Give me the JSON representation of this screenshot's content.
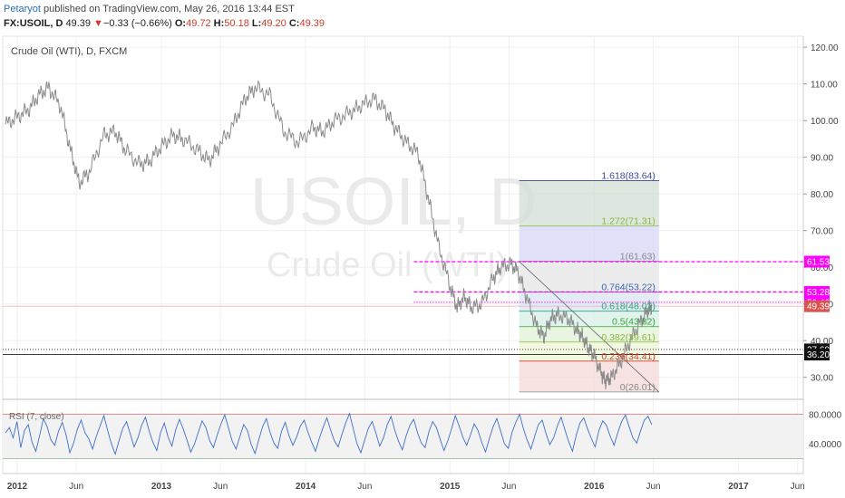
{
  "header": {
    "publisher": "Petaryot",
    "published_text": "published on TradingView.com, May 26, 2016 13:44 EST",
    "symbol": "FX:USOIL, D",
    "last": "49.39",
    "change_arrow": "▼",
    "change": "−0.33 (−0.66%)",
    "open_label": "O:",
    "open": "49.72",
    "high_label": "H:",
    "high": "50.18",
    "low_label": "L:",
    "low": "49.20",
    "close_label": "C:",
    "close": "49.39"
  },
  "pane_title": "Crude Oil (WTI), D, FXCM",
  "watermark": {
    "symbol": "USOIL, D",
    "name": "Crude Oil (WTI)"
  },
  "rsi_title": "RSI (7, close)",
  "colors": {
    "price_line": "#8a8a8a",
    "rsi_line": "#3d6ec9",
    "last_price": "#d9534f",
    "magenta": "#ff00ff",
    "fib_line": "#3a49a0"
  },
  "chart_data": {
    "type": "line",
    "title": "Crude Oil (WTI), D, FXCM",
    "ylim": [
      24,
      123
    ],
    "y_ticks": [
      120,
      110,
      100,
      90,
      80,
      70,
      60,
      50,
      40,
      30
    ],
    "y_tick_labels": [
      "120.00",
      "110.00",
      "100.00",
      "90.00",
      "80.00",
      "70.00",
      "60.00",
      "50.00",
      "40.00",
      "30.00"
    ],
    "x_range": [
      2011.9,
      2017.45
    ],
    "x_ticks": [
      2012.0,
      2012.41,
      2013.0,
      2013.41,
      2014.0,
      2014.41,
      2015.0,
      2015.41,
      2016.0,
      2016.41,
      2017.0,
      2017.41
    ],
    "x_tick_labels": [
      "2012",
      "Jun",
      "2013",
      "Jun",
      "2014",
      "Jun",
      "2015",
      "Jun",
      "2016",
      "Jun",
      "2017",
      "Jun"
    ],
    "x_tick_bold": [
      true,
      false,
      true,
      false,
      true,
      false,
      true,
      false,
      true,
      false,
      true,
      false
    ],
    "series": [
      {
        "x": [
          2011.92,
          2012.0,
          2012.08,
          2012.15,
          2012.22,
          2012.3,
          2012.37,
          2012.43,
          2012.5,
          2012.6,
          2012.68,
          2012.75,
          2012.85,
          2012.92,
          2013.0,
          2013.08,
          2013.15,
          2013.25,
          2013.33,
          2013.4,
          2013.5,
          2013.58,
          2013.65,
          2013.75,
          2013.85,
          2013.95,
          2014.05,
          2014.12,
          2014.2,
          2014.3,
          2014.38,
          2014.47,
          2014.55,
          2014.62,
          2014.7,
          2014.78,
          2014.85,
          2014.92,
          2015.0,
          2015.05,
          2015.1,
          2015.15,
          2015.22,
          2015.3,
          2015.35,
          2015.42,
          2015.47,
          2015.53,
          2015.6,
          2015.65,
          2015.7,
          2015.75,
          2015.82,
          2015.88,
          2015.92,
          2015.96,
          2016.0,
          2016.05,
          2016.08,
          2016.12,
          2016.18,
          2016.25,
          2016.32,
          2016.37,
          2016.4
        ],
        "y": [
          99,
          101,
          103,
          107,
          109,
          104,
          92,
          83,
          86,
          96,
          97,
          92,
          88,
          89,
          93,
          96,
          95,
          92,
          89,
          93,
          99,
          106,
          109,
          107,
          97,
          94,
          98,
          97,
          100,
          102,
          104,
          106,
          103,
          98,
          94,
          91,
          79,
          66,
          55,
          49,
          52,
          49,
          50,
          57,
          60,
          61,
          59,
          52,
          44,
          41,
          46,
          47,
          46,
          43,
          41,
          38,
          36,
          31,
          29,
          30,
          34,
          40,
          45,
          48,
          49.4
        ]
      }
    ],
    "trendline": {
      "x": [
        2015.48,
        2016.45
      ],
      "y": [
        61.6,
        26.0
      ]
    },
    "fib": {
      "x_start": 2015.48,
      "x_end": 2016.45,
      "levels": [
        {
          "label": "1.618(83.64)",
          "value": 83.64,
          "color": "#3a49a0"
        },
        {
          "label": "1.272(71.31)",
          "value": 71.31,
          "color": "#8bb83a"
        },
        {
          "label": "1(61.63)",
          "value": 61.63,
          "color": "#888888"
        },
        {
          "label": "0.764(53.22)",
          "value": 53.22,
          "color": "#3a64b0"
        },
        {
          "label": "0.618(48.02)",
          "value": 48.02,
          "color": "#2aa879"
        },
        {
          "label": "0.5(43.82)",
          "value": 43.82,
          "color": "#3aa43a"
        },
        {
          "label": "0.382(39.61)",
          "value": 39.61,
          "color": "#8bb83a"
        },
        {
          "label": "0.236(34.41)",
          "value": 34.41,
          "color": "#d23b2a"
        },
        {
          "label": "0(26.01)",
          "value": 26.01,
          "color": "#888888"
        }
      ],
      "bands": [
        {
          "from": 71.31,
          "to": 83.64,
          "color": "#d3ded6"
        },
        {
          "from": 61.63,
          "to": 71.31,
          "color": "#d7d8f7"
        },
        {
          "from": 53.22,
          "to": 61.63,
          "color": "#e6e6e6"
        },
        {
          "from": 48.02,
          "to": 53.22,
          "color": "#d9e4f4"
        },
        {
          "from": 43.82,
          "to": 48.02,
          "color": "#d6efe6"
        },
        {
          "from": 39.61,
          "to": 43.82,
          "color": "#e0f2d6"
        },
        {
          "from": 34.41,
          "to": 39.61,
          "color": "#edf5d6"
        },
        {
          "from": 26.01,
          "to": 34.41,
          "color": "#f6d9d9"
        }
      ]
    },
    "horizontal_lines": [
      {
        "value": 61.53,
        "style": "dashed",
        "color": "#ff00ff",
        "x_start": 2014.75
      },
      {
        "value": 53.28,
        "style": "dashed",
        "color": "#ff00ff",
        "x_start": 2014.75
      },
      {
        "value": 50.46,
        "style": "dotted",
        "color": "#ff00ff",
        "x_start": 2014.75
      },
      {
        "value": 49.39,
        "style": "solid",
        "color": "#f2b8b8",
        "x_start": 2011.9
      },
      {
        "value": 37.6,
        "style": "dotted",
        "color": "#222222",
        "x_start": 2011.9
      },
      {
        "value": 36.2,
        "style": "solid",
        "color": "#222222",
        "x_start": 2011.9
      }
    ],
    "price_labels": [
      {
        "text": "61.53",
        "value": 61.53,
        "bg": "#ff00ff",
        "fg": "#ffffff"
      },
      {
        "text": "53.28",
        "value": 53.28,
        "bg": "#ff00ff",
        "fg": "#ffffff"
      },
      {
        "text": "50.46",
        "value": 50.46,
        "bg": "#ff00ff",
        "fg": "#ffffff"
      },
      {
        "text": "49.39",
        "value": 49.39,
        "bg": "#d9534f",
        "fg": "#ffffff"
      },
      {
        "text": "37.60",
        "value": 37.6,
        "bg": "#111111",
        "fg": "#ffffff"
      },
      {
        "text": "36.20",
        "value": 36.2,
        "bg": "#111111",
        "fg": "#ffffff"
      }
    ],
    "rsi": {
      "ylim": [
        0,
        100
      ],
      "upper": 80,
      "lower": 20,
      "y_ticks": [
        80,
        40
      ],
      "y_tick_labels": [
        "80.0000",
        "40.0000"
      ],
      "values": [
        55,
        62,
        48,
        70,
        35,
        58,
        66,
        42,
        30,
        51,
        74,
        63,
        45,
        38,
        57,
        69,
        52,
        28,
        41,
        60,
        72,
        55,
        47,
        33,
        50,
        64,
        78,
        58,
        40,
        26,
        44,
        61,
        70,
        53,
        36,
        48,
        65,
        76,
        57,
        42,
        31,
        55,
        68,
        49,
        37,
        59,
        73,
        60,
        45,
        29,
        40,
        56,
        71,
        62,
        44,
        35,
        52,
        67,
        79,
        61,
        43,
        33,
        50,
        66,
        58,
        39,
        27,
        46,
        63,
        74,
        55,
        41,
        34,
        57,
        69,
        51,
        38,
        49,
        64,
        72,
        56,
        42,
        30,
        47,
        62,
        75,
        59,
        44,
        36,
        53,
        68,
        81,
        60,
        40,
        28,
        45,
        61,
        70,
        54,
        37,
        48,
        66,
        77,
        58,
        43,
        32,
        51,
        65,
        73,
        55,
        41,
        35,
        56,
        70,
        62,
        46,
        31,
        44,
        60,
        78,
        64,
        49,
        38,
        52,
        67,
        58,
        42,
        29,
        47,
        63,
        74,
        57,
        40,
        34,
        55,
        69,
        80,
        61,
        45,
        33,
        50,
        66,
        72,
        54,
        39,
        48,
        64,
        76,
        59,
        43,
        30,
        52,
        68,
        75,
        60,
        47,
        36,
        58,
        71,
        65,
        50,
        38,
        55,
        70,
        79,
        63,
        48,
        41,
        57,
        72,
        77,
        66
      ]
    }
  }
}
